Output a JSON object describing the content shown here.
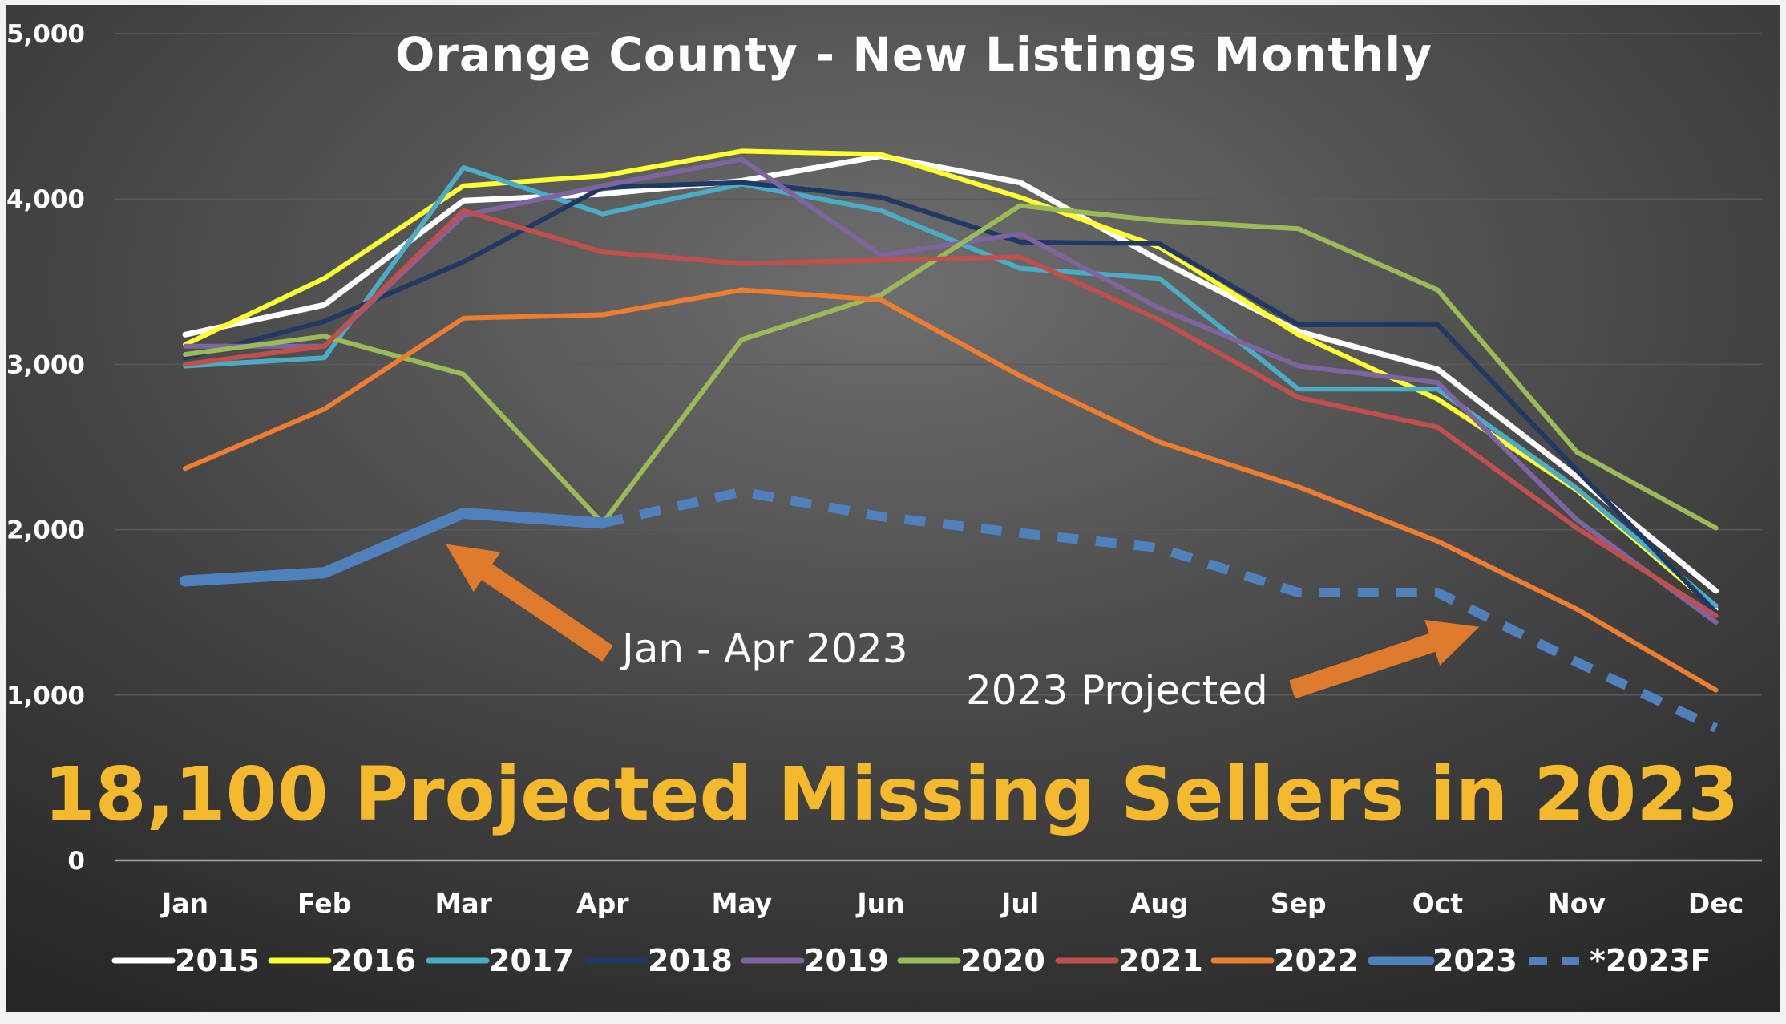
{
  "chart_data": {
    "type": "line",
    "title": "Orange County - New Listings Monthly",
    "xlabel": "",
    "ylabel": "",
    "categories": [
      "Jan",
      "Feb",
      "Mar",
      "Apr",
      "May",
      "Jun",
      "Jul",
      "Aug",
      "Sep",
      "Oct",
      "Nov",
      "Dec"
    ],
    "ylim": [
      0,
      5000
    ],
    "yticks": [
      "0",
      "1,000",
      "2,000",
      "3,000",
      "4,000",
      "5,000"
    ],
    "ytick_values": [
      0,
      1000,
      2000,
      3000,
      4000,
      5000
    ],
    "grid": true,
    "legend_placement": "bottom",
    "series": [
      {
        "name": "2015",
        "color": "#ffffff",
        "width": 7,
        "dash": "",
        "values": [
          3180,
          3360,
          3990,
          4030,
          4110,
          4260,
          4100,
          3630,
          3200,
          2970,
          2320,
          1630
        ]
      },
      {
        "name": "2016",
        "color": "#ffff33",
        "width": 6,
        "dash": "",
        "values": [
          3120,
          3520,
          4080,
          4140,
          4290,
          4270,
          4010,
          3710,
          3180,
          2790,
          2240,
          1520
        ]
      },
      {
        "name": "2017",
        "color": "#4bacc6",
        "width": 6,
        "dash": "",
        "values": [
          2990,
          3040,
          4190,
          3910,
          4090,
          3930,
          3580,
          3520,
          2850,
          2850,
          2250,
          1540
        ]
      },
      {
        "name": "2018",
        "color": "#1f3864",
        "width": 6,
        "dash": "",
        "values": [
          3040,
          3260,
          3620,
          4070,
          4100,
          4010,
          3740,
          3730,
          3240,
          3240,
          2360,
          1500
        ]
      },
      {
        "name": "2019",
        "color": "#8064a2",
        "width": 6,
        "dash": "",
        "values": [
          3110,
          3110,
          3900,
          4080,
          4240,
          3660,
          3790,
          3340,
          2990,
          2890,
          2060,
          1440
        ]
      },
      {
        "name": "2020",
        "color": "#9bbb59",
        "width": 6,
        "dash": "",
        "values": [
          3060,
          3170,
          2940,
          2040,
          3150,
          3420,
          3960,
          3870,
          3820,
          3450,
          2470,
          2010
        ]
      },
      {
        "name": "2021",
        "color": "#c0504d",
        "width": 6,
        "dash": "",
        "values": [
          3000,
          3110,
          3930,
          3680,
          3610,
          3630,
          3650,
          3270,
          2800,
          2620,
          2010,
          1480
        ]
      },
      {
        "name": "2022",
        "color": "#ed7d31",
        "width": 6,
        "dash": "",
        "values": [
          2370,
          2730,
          3280,
          3300,
          3450,
          3390,
          2930,
          2530,
          2260,
          1930,
          1520,
          1030
        ]
      },
      {
        "name": "2023",
        "color": "#4f81bd",
        "width": 14,
        "dash": "",
        "values": [
          1690,
          1740,
          2100,
          2040,
          null,
          null,
          null,
          null,
          null,
          null,
          null,
          null
        ]
      },
      {
        "name": "*2023F",
        "color": "#4f81bd",
        "width": 12,
        "dash": "26,22",
        "values": [
          null,
          null,
          null,
          2040,
          2230,
          2080,
          1980,
          1890,
          1620,
          1620,
          1200,
          800
        ]
      }
    ],
    "annotations": [
      {
        "text": "Jan - Apr 2023",
        "points_to": {
          "x": "Mar",
          "y": 2000
        }
      },
      {
        "text": "2023 Projected",
        "points_to": {
          "x": "Oct",
          "y": 1500
        }
      }
    ],
    "headline": "18,100 Projected Missing Sellers in 2023"
  },
  "colors": {
    "background_light": "#666666",
    "background_dark": "#262626",
    "gridline": "#5a5a5a",
    "axis": "#a6a6a6",
    "arrow": "#e07a2c",
    "headline": "#f5b92e"
  }
}
